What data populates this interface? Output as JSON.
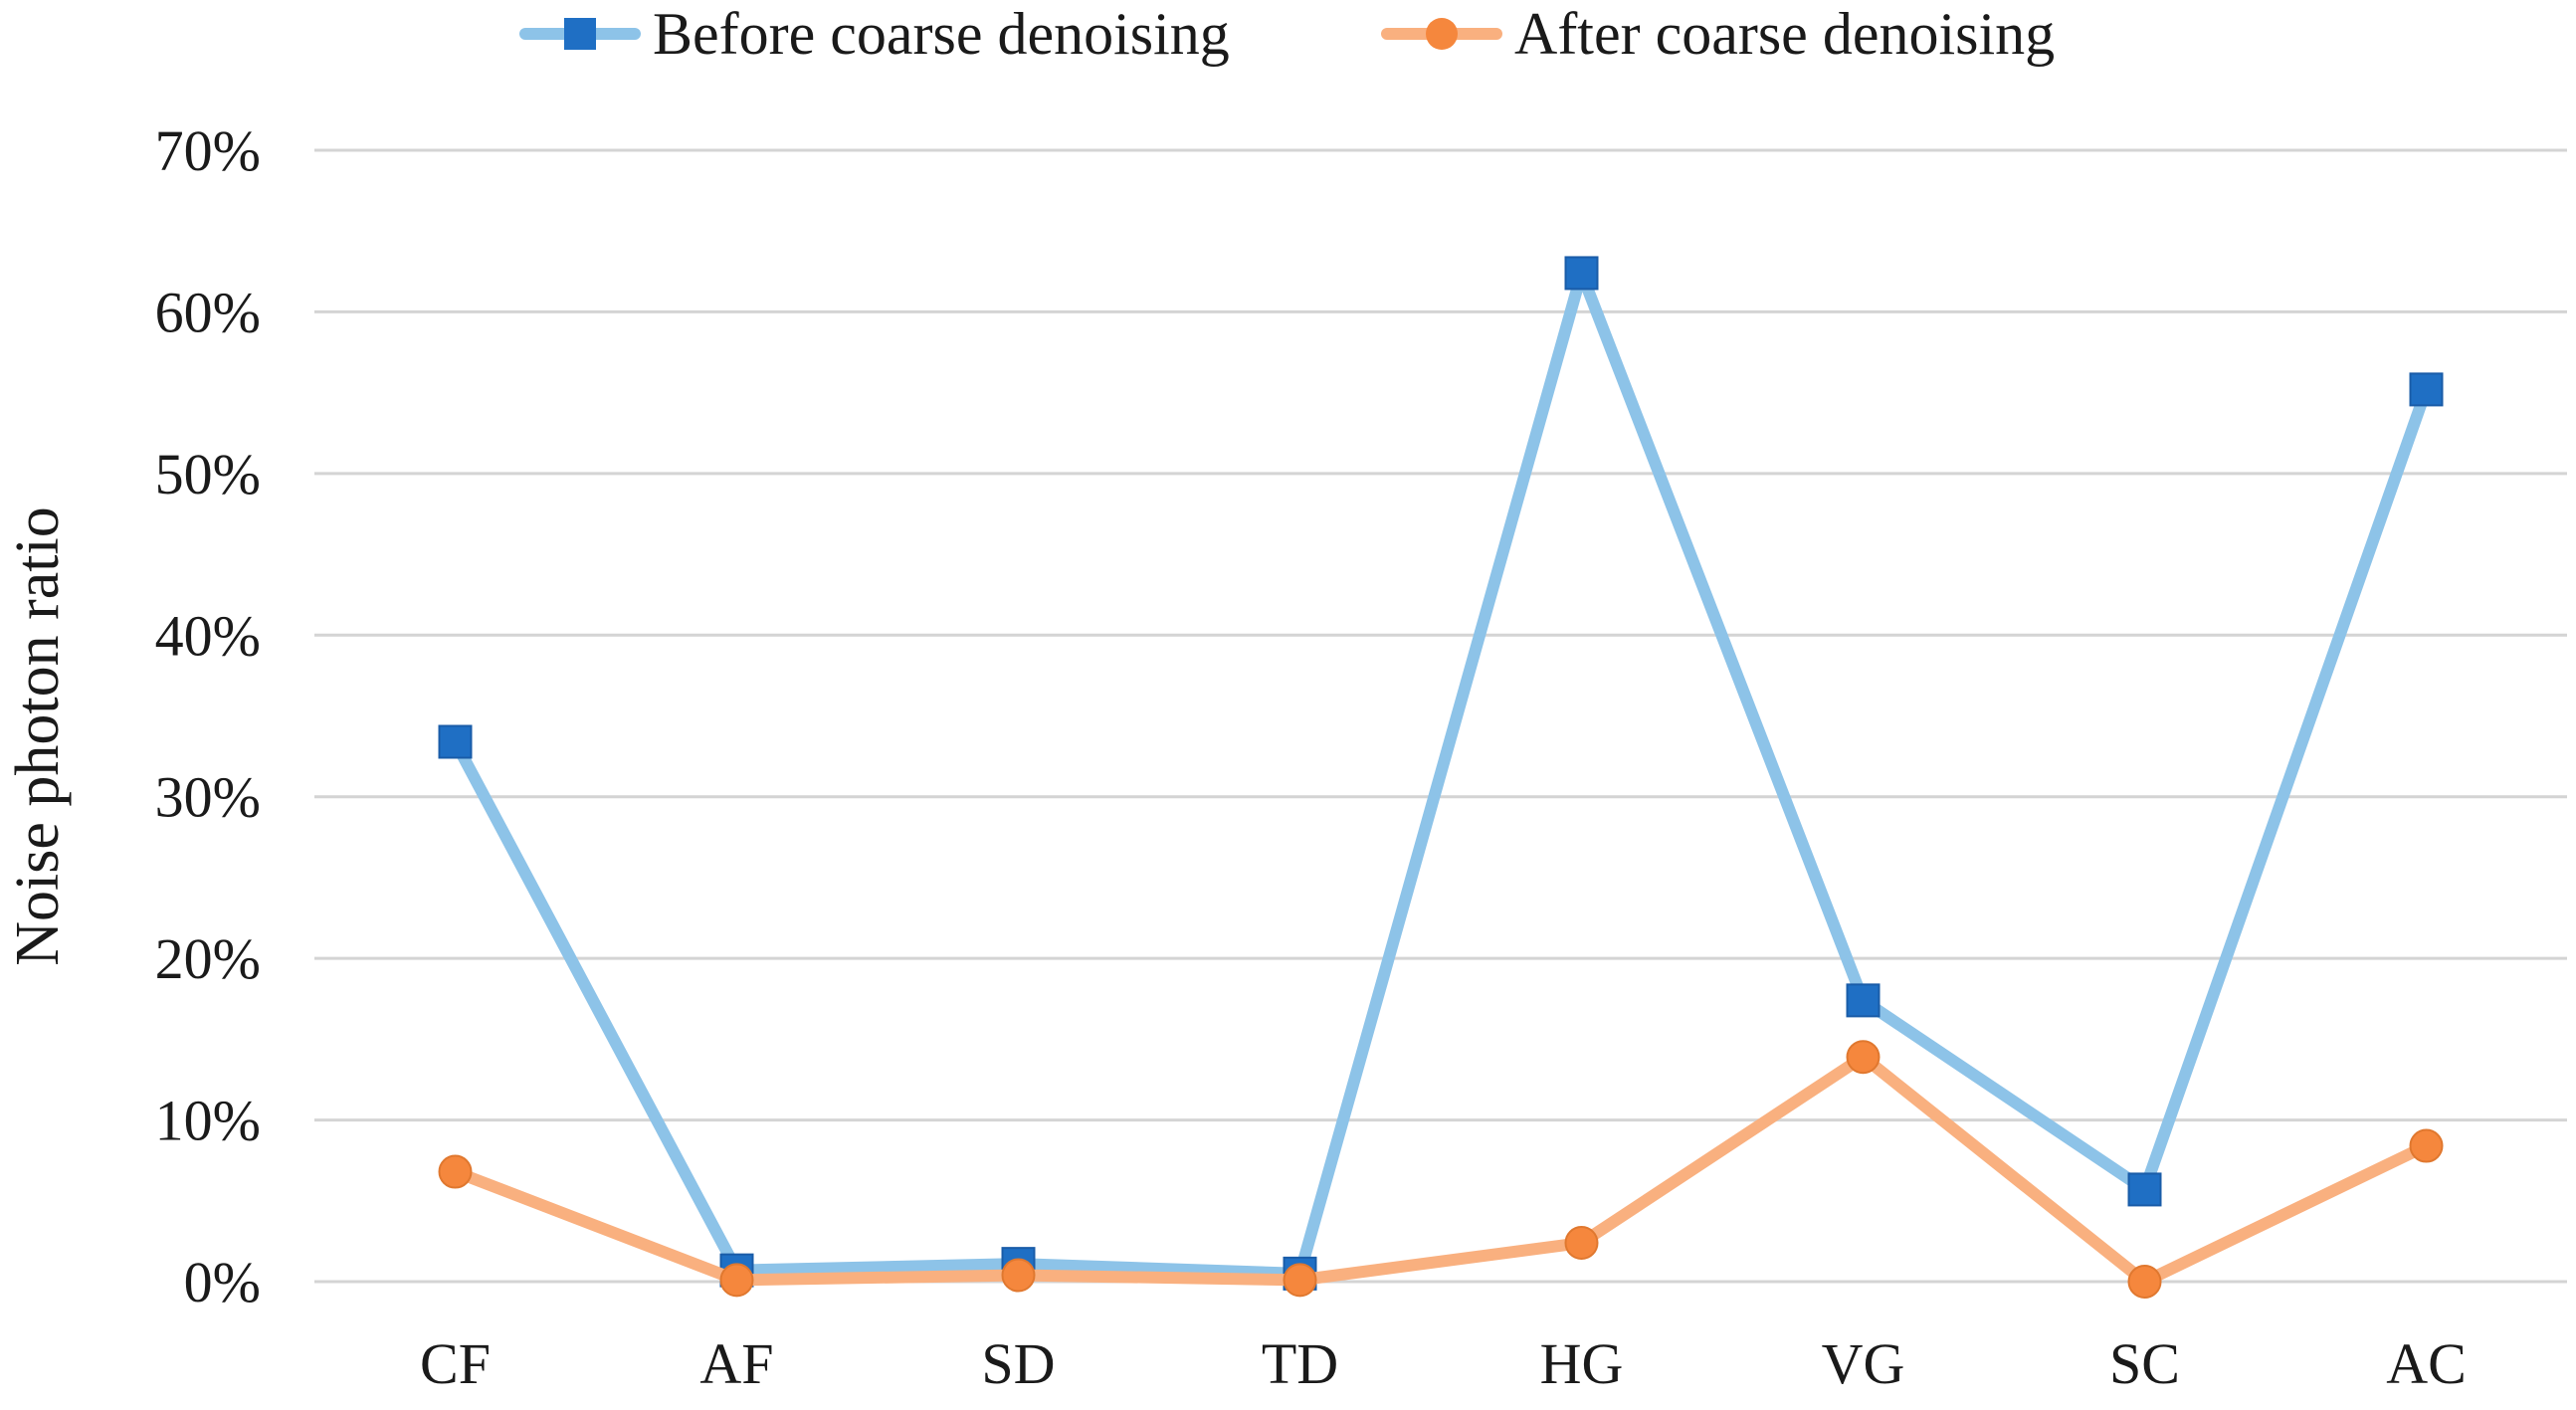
{
  "chart_data": {
    "type": "line",
    "title": "",
    "xlabel": "",
    "ylabel": "Noise photon ratio",
    "categories": [
      "CF",
      "AF",
      "SD",
      "TD",
      "HG",
      "VG",
      "SC",
      "AC"
    ],
    "ylim": [
      0,
      0.7
    ],
    "yticks": [
      0,
      0.1,
      0.2,
      0.3,
      0.4,
      0.5,
      0.6,
      0.7
    ],
    "ytick_labels": [
      "0%",
      "10%",
      "20%",
      "30%",
      "40%",
      "50%",
      "60%",
      "70%"
    ],
    "grid": true,
    "legend_position": "top-center",
    "series": [
      {
        "name": "Before coarse denoising",
        "marker": "square",
        "line_color": "#8DC3E8",
        "marker_color": "#1F6FC4",
        "values": [
          0.334,
          0.007,
          0.011,
          0.005,
          0.624,
          0.174,
          0.057,
          0.552
        ]
      },
      {
        "name": "After coarse denoising",
        "marker": "circle",
        "line_color": "#F9B07F",
        "marker_color": "#F5873D",
        "values": [
          0.068,
          0.001,
          0.004,
          0.001,
          0.024,
          0.139,
          0.0,
          0.084
        ]
      }
    ]
  }
}
